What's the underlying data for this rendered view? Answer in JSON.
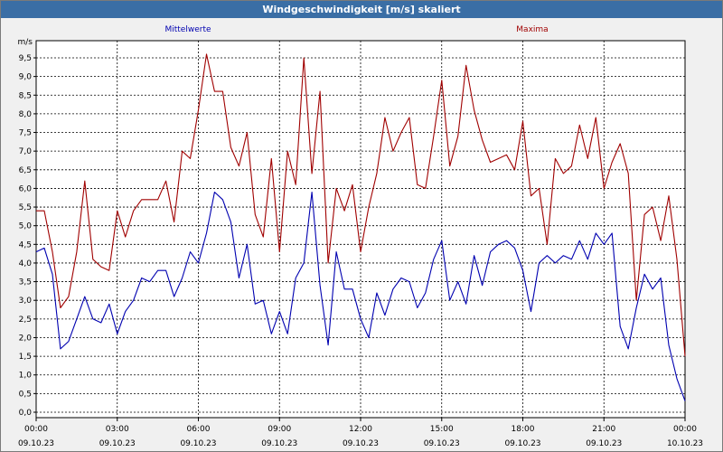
{
  "window": {
    "title": "Windgeschwindigkeit [m/s] skaliert"
  },
  "colors": {
    "mean": "#0000b0",
    "max": "#a00000",
    "grid": "#000000",
    "plot_bg": "#ffffff",
    "title_bg": "#3a6ea5"
  },
  "chart_data": {
    "type": "line",
    "title": "Windgeschwindigkeit [m/s] skaliert",
    "ylabel": "m/s",
    "xlabel": "",
    "ylim": [
      0,
      9.5
    ],
    "xlim": [
      0,
      24
    ],
    "grid": true,
    "y_ticks": [
      "0,0",
      "0,5",
      "1,0",
      "1,5",
      "2,0",
      "2,5",
      "3,0",
      "3,5",
      "4,0",
      "4,5",
      "5,0",
      "5,5",
      "6,0",
      "6,5",
      "7,0",
      "7,5",
      "8,0",
      "8,5",
      "9,0",
      "9,5"
    ],
    "x_ticks": [
      {
        "time": "00:00",
        "date": "09.10.23",
        "hour": 0
      },
      {
        "time": "03:00",
        "date": "09.10.23",
        "hour": 3
      },
      {
        "time": "06:00",
        "date": "09.10.23",
        "hour": 6
      },
      {
        "time": "09:00",
        "date": "09.10.23",
        "hour": 9
      },
      {
        "time": "12:00",
        "date": "09.10.23",
        "hour": 12
      },
      {
        "time": "15:00",
        "date": "09.10.23",
        "hour": 15
      },
      {
        "time": "18:00",
        "date": "09.10.23",
        "hour": 18
      },
      {
        "time": "21:00",
        "date": "09.10.23",
        "hour": 21
      },
      {
        "time": "00:00",
        "date": "10.10.23",
        "hour": 24
      }
    ],
    "series": [
      {
        "name": "Mittelwerte",
        "color": "#0000b0",
        "x": [
          0,
          0.3,
          0.6,
          0.9,
          1.2,
          1.5,
          1.8,
          2.1,
          2.4,
          2.7,
          3.0,
          3.3,
          3.6,
          3.9,
          4.2,
          4.5,
          4.8,
          5.1,
          5.4,
          5.7,
          6.0,
          6.3,
          6.6,
          6.9,
          7.2,
          7.5,
          7.8,
          8.1,
          8.4,
          8.7,
          9.0,
          9.3,
          9.6,
          9.9,
          10.2,
          10.5,
          10.8,
          11.1,
          11.4,
          11.7,
          12.0,
          12.3,
          12.6,
          12.9,
          13.2,
          13.5,
          13.8,
          14.1,
          14.4,
          14.7,
          15.0,
          15.3,
          15.6,
          15.9,
          16.2,
          16.5,
          16.8,
          17.1,
          17.4,
          17.7,
          18.0,
          18.3,
          18.6,
          18.9,
          19.2,
          19.5,
          19.8,
          20.1,
          20.4,
          20.7,
          21.0,
          21.3,
          21.6,
          21.9,
          22.2,
          22.5,
          22.8,
          23.1,
          23.4,
          23.7,
          24.0
        ],
        "values": [
          4.3,
          4.4,
          3.7,
          1.7,
          1.9,
          2.5,
          3.1,
          2.5,
          2.4,
          2.9,
          2.1,
          2.7,
          3.0,
          3.6,
          3.5,
          3.8,
          3.8,
          3.1,
          3.6,
          4.3,
          4.0,
          4.8,
          5.9,
          5.7,
          5.1,
          3.6,
          4.5,
          2.9,
          3.0,
          2.1,
          2.7,
          2.1,
          3.6,
          4.0,
          5.9,
          3.4,
          1.8,
          4.3,
          3.3,
          3.3,
          2.5,
          2.0,
          3.2,
          2.6,
          3.3,
          3.6,
          3.5,
          2.8,
          3.2,
          4.1,
          4.6,
          3.0,
          3.5,
          2.9,
          4.2,
          3.4,
          4.3,
          4.5,
          4.6,
          4.4,
          3.8,
          2.7,
          4.0,
          4.2,
          4.0,
          4.2,
          4.1,
          4.6,
          4.1,
          4.8,
          4.5,
          4.8,
          2.3,
          1.7,
          2.8,
          3.7,
          3.3,
          3.6,
          1.8,
          0.9,
          0.3
        ]
      },
      {
        "name": "Maxima",
        "color": "#a00000",
        "x": [
          0,
          0.3,
          0.6,
          0.9,
          1.2,
          1.5,
          1.8,
          2.1,
          2.4,
          2.7,
          3.0,
          3.3,
          3.6,
          3.9,
          4.2,
          4.5,
          4.8,
          5.1,
          5.4,
          5.7,
          6.0,
          6.3,
          6.6,
          6.9,
          7.2,
          7.5,
          7.8,
          8.1,
          8.4,
          8.7,
          9.0,
          9.3,
          9.6,
          9.9,
          10.2,
          10.5,
          10.8,
          11.1,
          11.4,
          11.7,
          12.0,
          12.3,
          12.6,
          12.9,
          13.2,
          13.5,
          13.8,
          14.1,
          14.4,
          14.7,
          15.0,
          15.3,
          15.6,
          15.9,
          16.2,
          16.5,
          16.8,
          17.1,
          17.4,
          17.7,
          18.0,
          18.3,
          18.6,
          18.9,
          19.2,
          19.5,
          19.8,
          20.1,
          20.4,
          20.7,
          21.0,
          21.3,
          21.6,
          21.9,
          22.2,
          22.5,
          22.8,
          23.1,
          23.4,
          23.7,
          24.0
        ],
        "values": [
          5.4,
          5.4,
          4.3,
          2.8,
          3.1,
          4.3,
          6.2,
          4.1,
          3.9,
          3.8,
          5.4,
          4.7,
          5.4,
          5.7,
          5.7,
          5.7,
          6.2,
          5.1,
          7.0,
          6.8,
          8.1,
          9.6,
          8.6,
          8.6,
          7.1,
          6.6,
          7.5,
          5.3,
          4.7,
          6.8,
          4.3,
          7.0,
          6.1,
          9.5,
          6.4,
          8.6,
          4.0,
          6.0,
          5.4,
          6.1,
          4.3,
          5.5,
          6.4,
          7.9,
          7.0,
          7.5,
          7.9,
          6.1,
          6.0,
          7.4,
          8.9,
          6.6,
          7.4,
          9.3,
          8.1,
          7.3,
          6.7,
          6.8,
          6.9,
          6.5,
          7.8,
          5.8,
          6.0,
          4.5,
          6.8,
          6.4,
          6.6,
          7.7,
          6.8,
          7.9,
          6.0,
          6.7,
          7.2,
          6.4,
          3.0,
          5.3,
          5.5,
          4.6,
          5.8,
          4.1,
          1.5
        ]
      }
    ]
  }
}
